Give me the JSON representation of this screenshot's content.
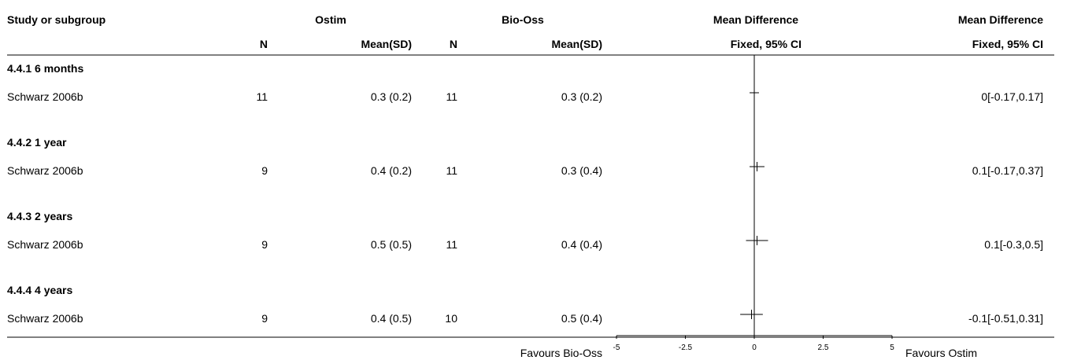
{
  "header": {
    "study_col": "Study or subgroup",
    "group1": "Ostim",
    "group2": "Bio-Oss",
    "n_label": "N",
    "mean_sd_label": "Mean(SD)",
    "md_title": "Mean Difference",
    "md_sub": "Fixed, 95% CI"
  },
  "subgroups": [
    {
      "title": "4.4.1 6 months",
      "study": "Schwarz 2006b",
      "n1": "11",
      "ms1": "0.3 (0.2)",
      "n2": "11",
      "ms2": "0.3 (0.2)",
      "ci_text": "0[-0.17,0.17]"
    },
    {
      "title": "4.4.2 1 year",
      "study": "Schwarz 2006b",
      "n1": "9",
      "ms1": "0.4 (0.2)",
      "n2": "11",
      "ms2": "0.3 (0.4)",
      "ci_text": "0.1[-0.17,0.37]"
    },
    {
      "title": "4.4.3 2 years",
      "study": "Schwarz 2006b",
      "n1": "9",
      "ms1": "0.5 (0.5)",
      "n2": "11",
      "ms2": "0.4 (0.4)",
      "ci_text": "0.1[-0.3,0.5]"
    },
    {
      "title": "4.4.4 4 years",
      "study": "Schwarz 2006b",
      "n1": "9",
      "ms1": "0.4 (0.5)",
      "n2": "10",
      "ms2": "0.5 (0.4)",
      "ci_text": "-0.1[-0.51,0.31]"
    }
  ],
  "footer": {
    "favours_left": "Favours Bio-Oss",
    "favours_right": "Favours Ostim"
  },
  "chart_data": {
    "type": "forest",
    "xlim": [
      -5,
      5
    ],
    "ticks": [
      "-5",
      "-2.5",
      "0",
      "2.5",
      "5"
    ],
    "tick_values": [
      -5,
      -2.5,
      0,
      2.5,
      5
    ],
    "points": [
      {
        "md": 0,
        "lo": -0.17,
        "hi": 0.17
      },
      {
        "md": 0.1,
        "lo": -0.17,
        "hi": 0.37
      },
      {
        "md": 0.1,
        "lo": -0.3,
        "hi": 0.5
      },
      {
        "md": -0.1,
        "lo": -0.51,
        "hi": 0.31
      }
    ]
  }
}
